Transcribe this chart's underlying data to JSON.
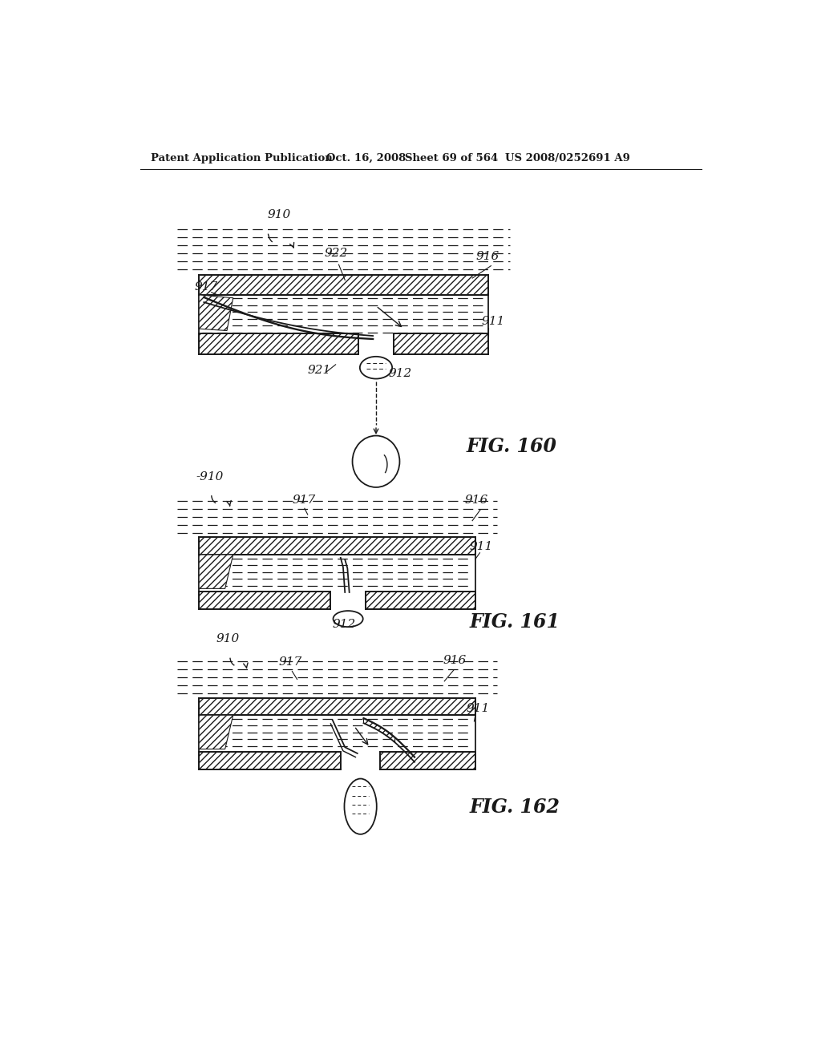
{
  "header_left": "Patent Application Publication",
  "header_date": "Oct. 16, 2008",
  "header_sheet": "Sheet 69 of 564",
  "header_right": "US 2008/0252691 A9",
  "fig160_label": "FIG. 160",
  "fig161_label": "FIG. 161",
  "fig162_label": "FIG. 162",
  "bg_color": "#ffffff",
  "line_color": "#1a1a1a"
}
